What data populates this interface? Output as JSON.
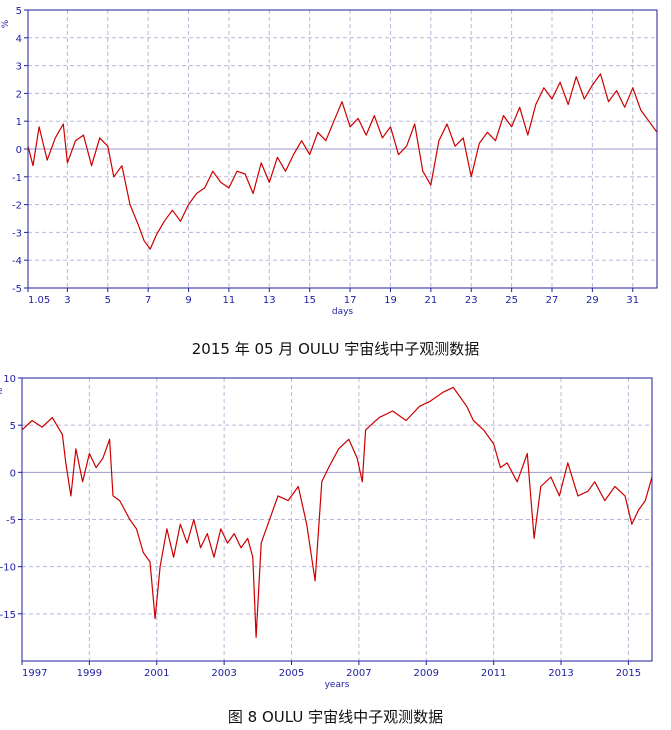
{
  "chart_data": [
    {
      "type": "line",
      "caption": "2015 年 05 月 OULU 宇宙线中子观测数据",
      "xlabel": "days",
      "ylabel": "%",
      "xlim": [
        1.05,
        32.2
      ],
      "ylim": [
        -5,
        5
      ],
      "yticks": [
        5,
        4,
        3,
        2,
        1,
        0,
        -1,
        -2,
        -3,
        -4,
        -5
      ],
      "xticks": [
        {
          "v": 1.05,
          "label": "1.05"
        },
        {
          "v": 3,
          "label": "3"
        },
        {
          "v": 5,
          "label": "5"
        },
        {
          "v": 7,
          "label": "7"
        },
        {
          "v": 9,
          "label": "9"
        },
        {
          "v": 11,
          "label": "11"
        },
        {
          "v": 13,
          "label": "13"
        },
        {
          "v": 15,
          "label": "15"
        },
        {
          "v": 17,
          "label": "17"
        },
        {
          "v": 19,
          "label": "19"
        },
        {
          "v": 21,
          "label": "21"
        },
        {
          "v": 23,
          "label": "23"
        },
        {
          "v": 25,
          "label": "25"
        },
        {
          "v": 27,
          "label": "27"
        },
        {
          "v": 29,
          "label": "29"
        },
        {
          "v": 31,
          "label": "31"
        }
      ],
      "grid": true,
      "line_color": "#cc0000",
      "series": [
        {
          "points": [
            [
              1.05,
              0.1
            ],
            [
              1.3,
              -0.6
            ],
            [
              1.6,
              0.8
            ],
            [
              2.0,
              -0.4
            ],
            [
              2.4,
              0.4
            ],
            [
              2.8,
              0.9
            ],
            [
              3.0,
              -0.5
            ],
            [
              3.4,
              0.3
            ],
            [
              3.8,
              0.5
            ],
            [
              4.2,
              -0.6
            ],
            [
              4.6,
              0.4
            ],
            [
              5.0,
              0.1
            ],
            [
              5.3,
              -1.0
            ],
            [
              5.7,
              -0.6
            ],
            [
              6.1,
              -2.0
            ],
            [
              6.5,
              -2.7
            ],
            [
              6.8,
              -3.3
            ],
            [
              7.1,
              -3.6
            ],
            [
              7.4,
              -3.1
            ],
            [
              7.8,
              -2.6
            ],
            [
              8.2,
              -2.2
            ],
            [
              8.6,
              -2.6
            ],
            [
              9.0,
              -2.0
            ],
            [
              9.4,
              -1.6
            ],
            [
              9.8,
              -1.4
            ],
            [
              10.2,
              -0.8
            ],
            [
              10.6,
              -1.2
            ],
            [
              11.0,
              -1.4
            ],
            [
              11.4,
              -0.8
            ],
            [
              11.8,
              -0.9
            ],
            [
              12.2,
              -1.6
            ],
            [
              12.6,
              -0.5
            ],
            [
              13.0,
              -1.2
            ],
            [
              13.4,
              -0.3
            ],
            [
              13.8,
              -0.8
            ],
            [
              14.2,
              -0.2
            ],
            [
              14.6,
              0.3
            ],
            [
              15.0,
              -0.2
            ],
            [
              15.4,
              0.6
            ],
            [
              15.8,
              0.3
            ],
            [
              16.2,
              1.0
            ],
            [
              16.6,
              1.7
            ],
            [
              17.0,
              0.8
            ],
            [
              17.4,
              1.1
            ],
            [
              17.8,
              0.5
            ],
            [
              18.2,
              1.2
            ],
            [
              18.6,
              0.4
            ],
            [
              19.0,
              0.8
            ],
            [
              19.4,
              -0.2
            ],
            [
              19.8,
              0.1
            ],
            [
              20.2,
              0.9
            ],
            [
              20.6,
              -0.8
            ],
            [
              21.0,
              -1.3
            ],
            [
              21.4,
              0.3
            ],
            [
              21.8,
              0.9
            ],
            [
              22.2,
              0.1
            ],
            [
              22.6,
              0.4
            ],
            [
              23.0,
              -1.0
            ],
            [
              23.4,
              0.2
            ],
            [
              23.8,
              0.6
            ],
            [
              24.2,
              0.3
            ],
            [
              24.6,
              1.2
            ],
            [
              25.0,
              0.8
            ],
            [
              25.4,
              1.5
            ],
            [
              25.8,
              0.5
            ],
            [
              26.2,
              1.6
            ],
            [
              26.6,
              2.2
            ],
            [
              27.0,
              1.8
            ],
            [
              27.4,
              2.4
            ],
            [
              27.8,
              1.6
            ],
            [
              28.2,
              2.6
            ],
            [
              28.6,
              1.8
            ],
            [
              29.0,
              2.3
            ],
            [
              29.4,
              2.7
            ],
            [
              29.8,
              1.7
            ],
            [
              30.2,
              2.1
            ],
            [
              30.6,
              1.5
            ],
            [
              31.0,
              2.2
            ],
            [
              31.4,
              1.4
            ],
            [
              31.8,
              1.0
            ],
            [
              32.2,
              0.6
            ]
          ]
        }
      ]
    },
    {
      "type": "line",
      "caption": "图 8    OULU 宇宙线中子观测数据",
      "xlabel": "years",
      "ylabel": "%",
      "xlim": [
        1997,
        2015.7
      ],
      "ylim": [
        -20,
        10
      ],
      "yticks": [
        10,
        5,
        0,
        -5,
        -10,
        -15
      ],
      "xticks": [
        {
          "v": 1997,
          "label": "1997"
        },
        {
          "v": 1999,
          "label": "1999"
        },
        {
          "v": 2001,
          "label": "2001"
        },
        {
          "v": 2003,
          "label": "2003"
        },
        {
          "v": 2005,
          "label": "2005"
        },
        {
          "v": 2007,
          "label": "2007"
        },
        {
          "v": 2009,
          "label": "2009"
        },
        {
          "v": 2011,
          "label": "2011"
        },
        {
          "v": 2013,
          "label": "2013"
        },
        {
          "v": 2015,
          "label": "2015"
        }
      ],
      "grid": true,
      "line_color": "#cc0000",
      "series": [
        {
          "points": [
            [
              1997.0,
              4.5
            ],
            [
              1997.3,
              5.5
            ],
            [
              1997.6,
              4.8
            ],
            [
              1997.9,
              5.8
            ],
            [
              1998.2,
              4.0
            ],
            [
              1998.3,
              1.0
            ],
            [
              1998.45,
              -2.5
            ],
            [
              1998.6,
              2.5
            ],
            [
              1998.8,
              -1.0
            ],
            [
              1999.0,
              2.0
            ],
            [
              1999.2,
              0.5
            ],
            [
              1999.4,
              1.5
            ],
            [
              1999.6,
              3.5
            ],
            [
              1999.7,
              -2.5
            ],
            [
              1999.9,
              -3.0
            ],
            [
              2000.2,
              -5.0
            ],
            [
              2000.4,
              -6.0
            ],
            [
              2000.6,
              -8.5
            ],
            [
              2000.8,
              -9.5
            ],
            [
              2000.95,
              -15.5
            ],
            [
              2001.1,
              -10.0
            ],
            [
              2001.3,
              -6.0
            ],
            [
              2001.5,
              -9.0
            ],
            [
              2001.7,
              -5.5
            ],
            [
              2001.9,
              -7.5
            ],
            [
              2002.1,
              -5.0
            ],
            [
              2002.3,
              -8.0
            ],
            [
              2002.5,
              -6.5
            ],
            [
              2002.7,
              -9.0
            ],
            [
              2002.9,
              -6.0
            ],
            [
              2003.1,
              -7.5
            ],
            [
              2003.3,
              -6.5
            ],
            [
              2003.5,
              -8.0
            ],
            [
              2003.7,
              -7.0
            ],
            [
              2003.85,
              -9.0
            ],
            [
              2003.95,
              -17.5
            ],
            [
              2004.1,
              -7.5
            ],
            [
              2004.3,
              -5.5
            ],
            [
              2004.6,
              -2.5
            ],
            [
              2004.9,
              -3.0
            ],
            [
              2005.2,
              -1.5
            ],
            [
              2005.45,
              -5.5
            ],
            [
              2005.7,
              -11.5
            ],
            [
              2005.9,
              -1.0
            ],
            [
              2006.1,
              0.5
            ],
            [
              2006.4,
              2.5
            ],
            [
              2006.7,
              3.5
            ],
            [
              2006.95,
              1.5
            ],
            [
              2007.1,
              -1.0
            ],
            [
              2007.2,
              4.5
            ],
            [
              2007.6,
              5.8
            ],
            [
              2008.0,
              6.5
            ],
            [
              2008.4,
              5.5
            ],
            [
              2008.8,
              7.0
            ],
            [
              2009.1,
              7.5
            ],
            [
              2009.5,
              8.5
            ],
            [
              2009.8,
              9.0
            ],
            [
              2010.0,
              8.0
            ],
            [
              2010.2,
              7.0
            ],
            [
              2010.4,
              5.5
            ],
            [
              2010.7,
              4.5
            ],
            [
              2011.0,
              3.0
            ],
            [
              2011.2,
              0.5
            ],
            [
              2011.4,
              1.0
            ],
            [
              2011.7,
              -1.0
            ],
            [
              2012.0,
              2.0
            ],
            [
              2012.2,
              -7.0
            ],
            [
              2012.4,
              -1.5
            ],
            [
              2012.7,
              -0.5
            ],
            [
              2012.95,
              -2.5
            ],
            [
              2013.2,
              1.0
            ],
            [
              2013.5,
              -2.5
            ],
            [
              2013.8,
              -2.0
            ],
            [
              2014.0,
              -1.0
            ],
            [
              2014.3,
              -3.0
            ],
            [
              2014.6,
              -1.5
            ],
            [
              2014.9,
              -2.5
            ],
            [
              2015.1,
              -5.5
            ],
            [
              2015.3,
              -4.0
            ],
            [
              2015.5,
              -3.0
            ],
            [
              2015.7,
              -0.5
            ]
          ]
        }
      ]
    }
  ]
}
